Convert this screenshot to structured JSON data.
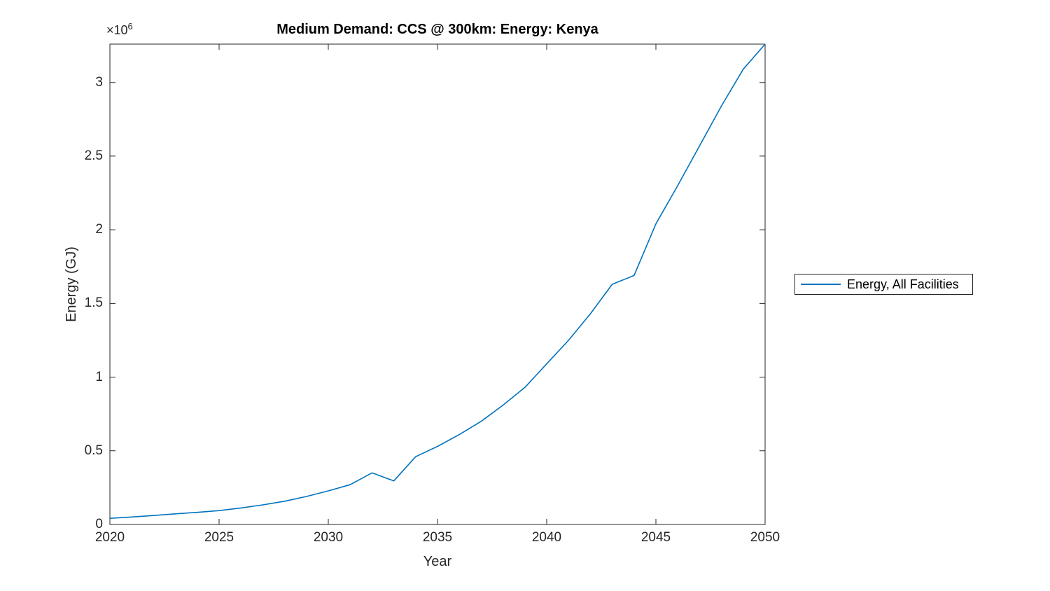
{
  "figure": {
    "background": "#ffffff"
  },
  "chart": {
    "title": "Medium Demand: CCS @ 300km: Energy: Kenya",
    "x_label": "Year",
    "y_label": "Energy (GJ)",
    "y_multiplier_base": "×10",
    "y_multiplier_exponent": "6",
    "axis_color": "#262626",
    "line_color": "#0072BD"
  },
  "legend": {
    "label": "Energy, All Facilities"
  },
  "chart_data": {
    "type": "line",
    "title": "Medium Demand: CCS @ 300km: Energy: Kenya",
    "xlabel": "Year",
    "ylabel": "Energy (GJ)",
    "units": "GJ",
    "value_multiplier": 1000000,
    "x": [
      2020,
      2021,
      2022,
      2023,
      2024,
      2025,
      2026,
      2027,
      2028,
      2029,
      2030,
      2031,
      2032,
      2033,
      2034,
      2035,
      2036,
      2037,
      2038,
      2039,
      2040,
      2041,
      2042,
      2043,
      2044,
      2045,
      2046,
      2047,
      2048,
      2049,
      2050
    ],
    "series": [
      {
        "name": "Energy, All Facilities",
        "values": [
          0.042,
          0.051,
          0.061,
          0.072,
          0.082,
          0.094,
          0.112,
          0.133,
          0.158,
          0.19,
          0.228,
          0.27,
          0.35,
          0.296,
          0.46,
          0.53,
          0.61,
          0.7,
          0.81,
          0.93,
          1.09,
          1.25,
          1.43,
          1.63,
          1.69,
          2.04,
          2.3,
          2.57,
          2.84,
          3.09,
          3.26
        ]
      }
    ],
    "xlim": [
      2020,
      2050
    ],
    "ylim": [
      0,
      3.26
    ],
    "x_ticks": [
      2020,
      2025,
      2030,
      2035,
      2040,
      2045,
      2050
    ],
    "x_tick_labels": [
      "2020",
      "2025",
      "2030",
      "2035",
      "2040",
      "2045",
      "2050"
    ],
    "y_ticks": [
      0,
      0.5,
      1,
      1.5,
      2,
      2.5,
      3
    ],
    "y_tick_labels": [
      "0",
      "0.5",
      "1",
      "1.5",
      "2",
      "2.5",
      "3"
    ],
    "grid": false,
    "legend_position": "right-outside"
  }
}
